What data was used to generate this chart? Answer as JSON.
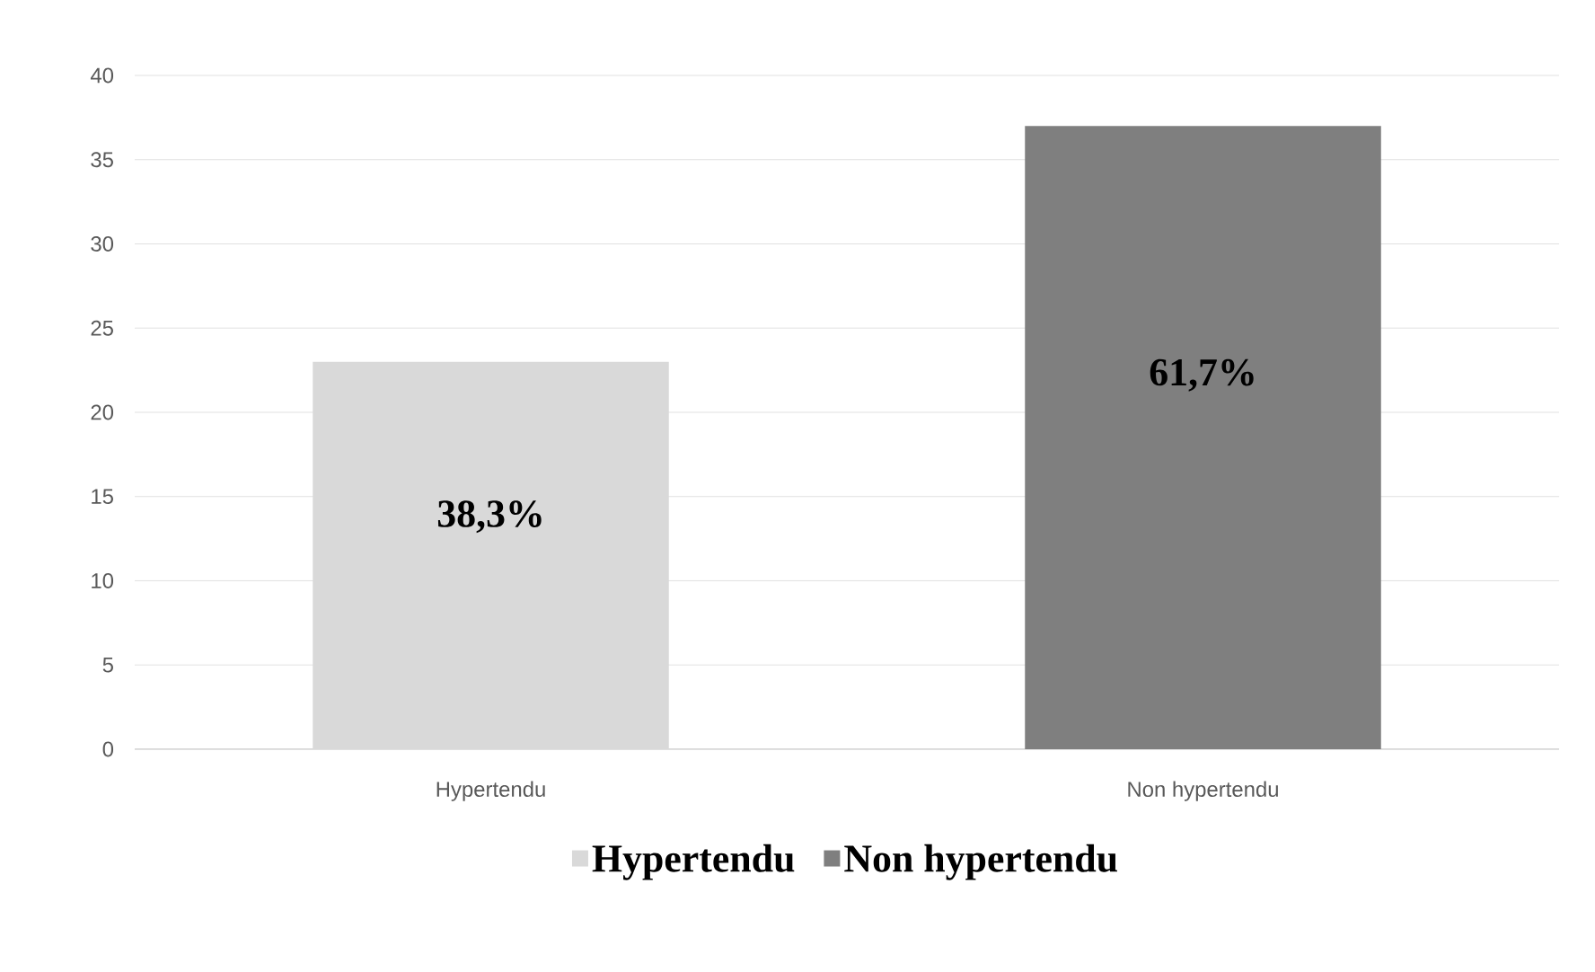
{
  "chart_data": {
    "type": "bar",
    "categories": [
      "Hypertendu",
      "Non hypertendu"
    ],
    "series": [
      {
        "name": "Hypertendu",
        "color": "#d9d9d9",
        "values": [
          23,
          null
        ]
      },
      {
        "name": "Non hypertendu",
        "color": "#7f7f7f",
        "values": [
          null,
          37
        ]
      }
    ],
    "annotations": [
      "38,3%",
      "61,7%"
    ],
    "ylim": [
      0,
      40
    ],
    "yticks": [
      0,
      5,
      10,
      15,
      20,
      25,
      30,
      35,
      40
    ],
    "grid": "y",
    "legend": "bottom"
  }
}
